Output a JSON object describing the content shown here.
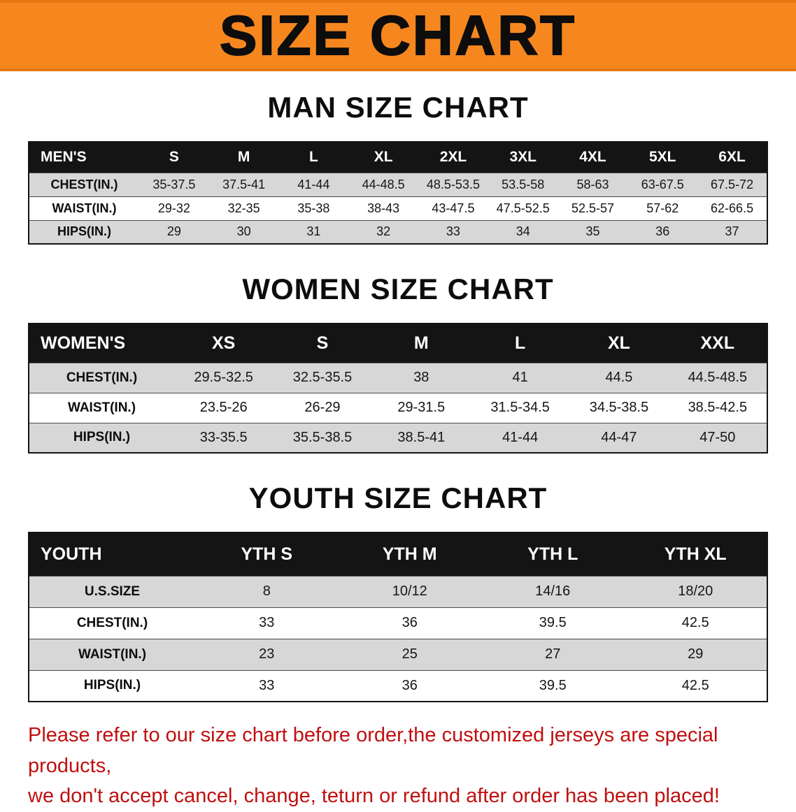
{
  "banner": {
    "title": "SIZE CHART",
    "bg_color": "#f6871f"
  },
  "colors": {
    "header_bg": "#141414",
    "row_alt_bg": "#d7d7d7",
    "disclaimer_text": "#c01010"
  },
  "sections": [
    {
      "key": "men",
      "heading": "MAN SIZE CHART",
      "table": {
        "header": [
          "MEN'S",
          "S",
          "M",
          "L",
          "XL",
          "2XL",
          "3XL",
          "4XL",
          "5XL",
          "6XL"
        ],
        "rows": [
          [
            "CHEST(IN.)",
            "35-37.5",
            "37.5-41",
            "41-44",
            "44-48.5",
            "48.5-53.5",
            "53.5-58",
            "58-63",
            "63-67.5",
            "67.5-72"
          ],
          [
            "WAIST(IN.)",
            "29-32",
            "32-35",
            "35-38",
            "38-43",
            "43-47.5",
            "47.5-52.5",
            "52.5-57",
            "57-62",
            "62-66.5"
          ],
          [
            "HIPS(IN.)",
            "29",
            "30",
            "31",
            "32",
            "33",
            "34",
            "35",
            "36",
            "37"
          ]
        ]
      }
    },
    {
      "key": "women",
      "heading": "WOMEN SIZE CHART",
      "table": {
        "header": [
          "WOMEN'S",
          "XS",
          "S",
          "M",
          "L",
          "XL",
          "XXL"
        ],
        "rows": [
          [
            "CHEST(IN.)",
            "29.5-32.5",
            "32.5-35.5",
            "38",
            "41",
            "44.5",
            "44.5-48.5"
          ],
          [
            "WAIST(IN.)",
            "23.5-26",
            "26-29",
            "29-31.5",
            "31.5-34.5",
            "34.5-38.5",
            "38.5-42.5"
          ],
          [
            "HIPS(IN.)",
            "33-35.5",
            "35.5-38.5",
            "38.5-41",
            "41-44",
            "44-47",
            "47-50"
          ]
        ]
      }
    },
    {
      "key": "youth",
      "heading": "YOUTH SIZE CHART",
      "table": {
        "header": [
          "YOUTH",
          "YTH S",
          "YTH M",
          "YTH L",
          "YTH XL"
        ],
        "rows": [
          [
            "U.S.SIZE",
            "8",
            "10/12",
            "14/16",
            "18/20"
          ],
          [
            "CHEST(IN.)",
            "33",
            "36",
            "39.5",
            "42.5"
          ],
          [
            "WAIST(IN.)",
            "23",
            "25",
            "27",
            "29"
          ],
          [
            "HIPS(IN.)",
            "33",
            "36",
            "39.5",
            "42.5"
          ]
        ]
      }
    }
  ],
  "disclaimer": {
    "line1": "Please refer to our size chart before order,the customized jerseys are special products,",
    "line2": "we don't accept cancel, change, teturn or refund after order has been placed!"
  }
}
